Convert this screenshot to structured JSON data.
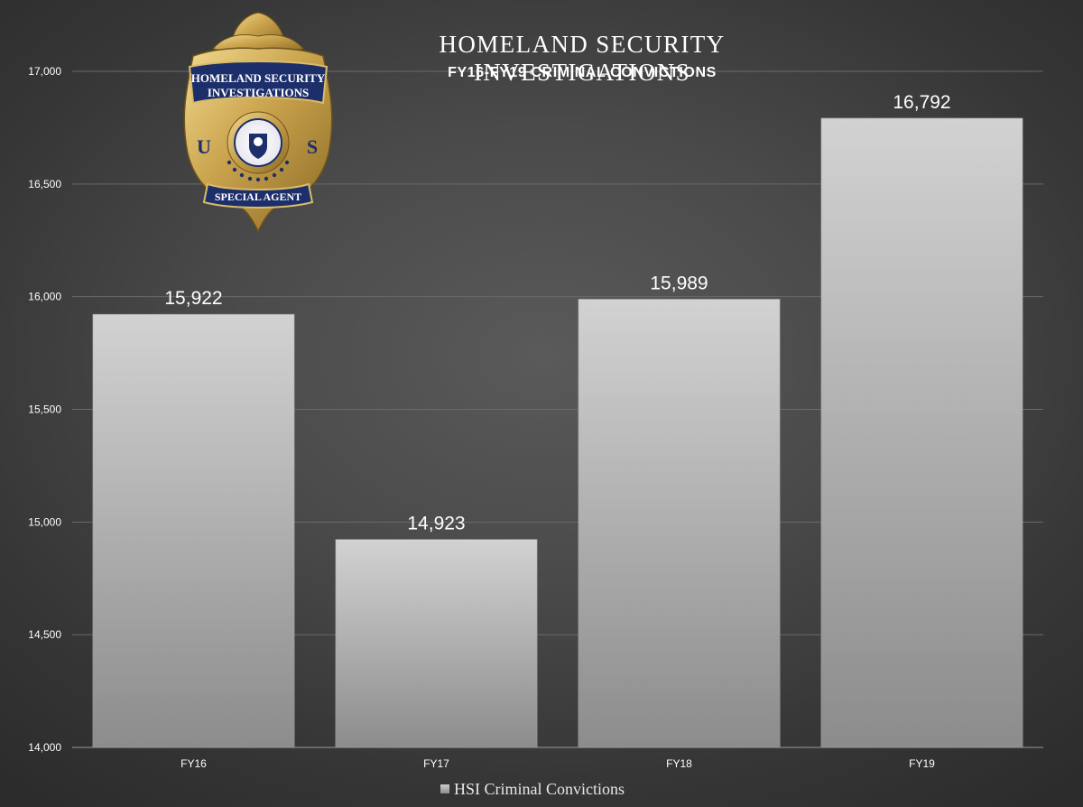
{
  "chart_data": {
    "type": "bar",
    "title": "HOMELAND SECURITY INVESTIGATIONS",
    "subtitle": "FY16-FY19 CRIMINAL CONVICTIONS",
    "categories": [
      "FY16",
      "FY17",
      "FY18",
      "FY19"
    ],
    "series": [
      {
        "name": "HSI Criminal Convictions",
        "values": [
          15922,
          14923,
          15989,
          16792
        ]
      }
    ],
    "data_labels": [
      "15,922",
      "14,923",
      "15,989",
      "16,792"
    ],
    "ylim": [
      14000,
      17000
    ],
    "y_ticks": [
      14000,
      14500,
      15000,
      15500,
      16000,
      16500,
      17000
    ],
    "y_tick_labels": [
      "14,000",
      "14,500",
      "15,000",
      "15,500",
      "16,000",
      "16,500",
      "17,000"
    ],
    "grid": true,
    "legend_position": "bottom",
    "xlabel": "",
    "ylabel": ""
  },
  "badge": {
    "icon": "hsi-special-agent-badge-icon",
    "top_text_line1": "HOMELAND SECURITY",
    "top_text_line2": "INVESTIGATIONS",
    "left_letter": "U",
    "right_letter": "S",
    "bottom_text": "SPECIAL AGENT"
  },
  "colors": {
    "background": "#4a4a4a",
    "bar_top": "#d2d2d2",
    "bar_bottom": "#8c8c8c",
    "text": "#ffffff",
    "gridline": "#6a6a6a",
    "badge_gold": "#c9a24c",
    "badge_blue": "#1d2f6b"
  }
}
